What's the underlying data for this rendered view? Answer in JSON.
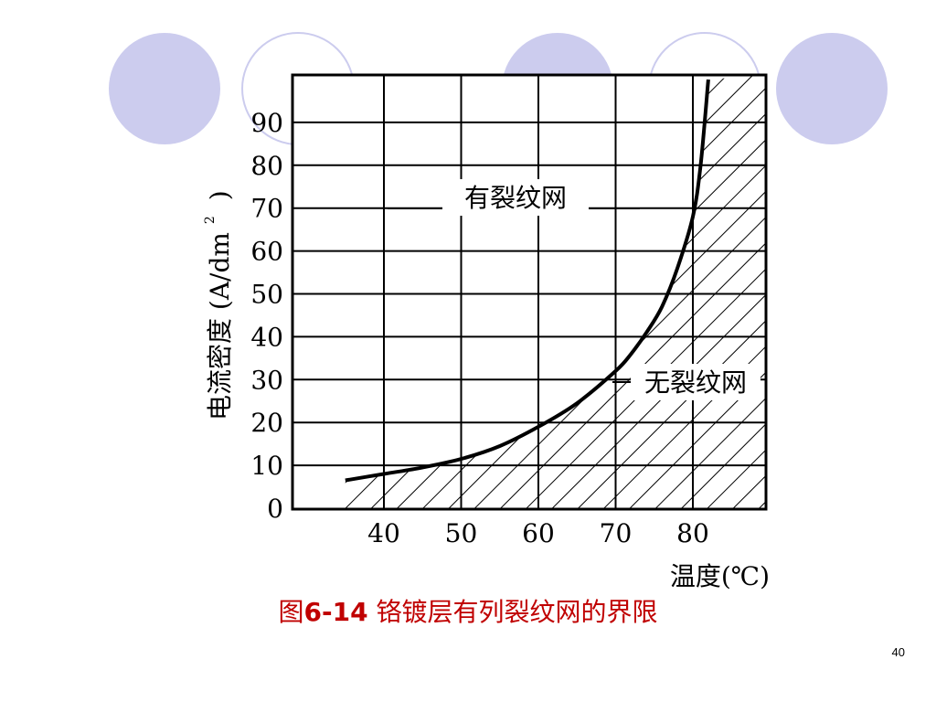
{
  "slide": {
    "page_number": "40",
    "caption_prefix": "图",
    "caption_number": "6-14",
    "caption_text": " 铬镀层有列裂纹网的界限",
    "deco_colors": {
      "filled": "#ccccee",
      "outline": "#ccccee"
    }
  },
  "chart_data": {
    "type": "line",
    "xlabel": "温度(℃)",
    "ylabel": "电流密度 (A/dm²)",
    "ylabel_main": "电流密度 (A/dm",
    "ylabel_sup": "2",
    "ylabel_close": ")",
    "xlim": [
      30,
      90
    ],
    "ylim": [
      0,
      100
    ],
    "x_ticks": [
      40,
      50,
      60,
      70,
      80
    ],
    "y_ticks": [
      0,
      10,
      20,
      30,
      40,
      50,
      60,
      70,
      80,
      90
    ],
    "x_tick_labels": [
      "40",
      "50",
      "60",
      "70",
      "80"
    ],
    "y_tick_labels": [
      "0",
      "10",
      "20",
      "30",
      "40",
      "50",
      "60",
      "70",
      "80",
      "90"
    ],
    "grid": true,
    "series": [
      {
        "x": [
          35,
          40,
          45,
          50,
          55,
          60,
          65,
          70,
          72,
          74,
          76,
          78,
          80,
          81,
          82
        ],
        "y": [
          6.5,
          8,
          9.5,
          11.5,
          14.5,
          19,
          24.5,
          32,
          36,
          41,
          47,
          56,
          68,
          80,
          100
        ]
      }
    ],
    "annotations": [
      {
        "text": "有裂纹网",
        "region": "above curve"
      },
      {
        "text": "无裂纹网",
        "region": "below curve (hatched)"
      }
    ]
  }
}
